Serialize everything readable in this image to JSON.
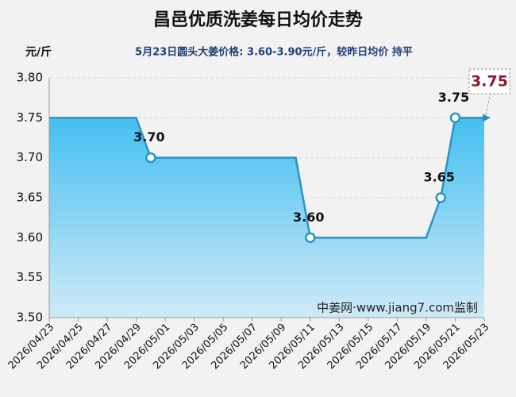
{
  "chart_data": {
    "type": "line",
    "title": "昌邑优质洗姜每日均价走势",
    "y_label": "元/斤",
    "subtitle": "5月23日圆头大姜价格: 3.60-3.90元/斤，较昨日均价 持平",
    "annotation": "中姜网·www.jiang7.com监制",
    "categories": [
      "2026/04/23",
      null,
      "2026/04/25",
      null,
      "2026/04/27",
      null,
      "2026/04/29",
      null,
      "2026/05/01",
      null,
      "2026/05/03",
      null,
      "2026/05/05",
      null,
      "2026/05/07",
      null,
      "2026/05/09",
      null,
      "2026/05/11",
      null,
      "2026/05/13",
      null,
      "2026/05/15",
      null,
      "2026/05/17",
      null,
      "2026/05/19",
      null,
      "2026/05/21",
      null,
      "2026/05/23"
    ],
    "values": [
      3.75,
      3.75,
      3.75,
      3.75,
      3.75,
      3.75,
      3.75,
      3.7,
      3.7,
      3.7,
      3.7,
      3.7,
      3.7,
      3.7,
      3.7,
      3.7,
      3.7,
      3.7,
      3.6,
      3.6,
      3.6,
      3.6,
      3.6,
      3.6,
      3.6,
      3.6,
      3.6,
      3.65,
      3.75,
      3.75,
      3.75
    ],
    "value_labels": [
      null,
      null,
      null,
      null,
      null,
      null,
      null,
      "3.70",
      null,
      null,
      null,
      null,
      null,
      null,
      null,
      null,
      null,
      null,
      "3.60",
      null,
      null,
      null,
      null,
      null,
      null,
      null,
      null,
      "3.65",
      "3.75",
      null,
      "3.75"
    ],
    "color": "#2b93c4",
    "ylim": [
      3.5,
      3.8
    ],
    "yticks": [
      {
        "value": 3.5,
        "label": "3.50"
      },
      {
        "value": 3.55,
        "label": "3.55"
      },
      {
        "value": 3.6,
        "label": "3.60"
      },
      {
        "value": 3.65,
        "label": "3.65"
      },
      {
        "value": 3.7,
        "label": "3.70"
      },
      {
        "value": 3.75,
        "label": "3.75"
      },
      {
        "value": 3.8,
        "label": "3.80"
      }
    ],
    "grid": true
  }
}
